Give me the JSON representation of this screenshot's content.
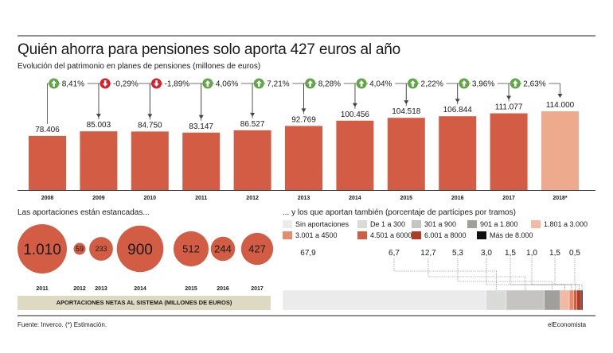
{
  "title": "Quién ahorra para pensiones solo aporta 427 euros al año",
  "subtitle": "Evolución del patrimonio en planes de pensiones (millones de euros)",
  "bubble_heading": "Las aportaciones están estancadas...",
  "bubble_banner": "APORTACIONES NETAS AL SISTEMA (MILLONES DE EUROS)",
  "share_heading": "... y los que aportan también (porcentaje de partícipes por tramos)",
  "source": "Fuente: Inverco. (*) Estimación.",
  "brand": "elEconomista",
  "colors": {
    "bar": "#d35d44",
    "bar_estimate": "#eeaa8c",
    "up": "#5fa646",
    "down": "#d8202a",
    "text": "#1a1a1a",
    "banner": "#ddd9c2"
  },
  "chart_data": [
    {
      "type": "bar",
      "categories": [
        "2008",
        "2009",
        "2010",
        "2011",
        "2012",
        "2013",
        "2014",
        "2015",
        "2016",
        "2017",
        "2018*"
      ],
      "values": [
        78406,
        85003,
        84750,
        83147,
        86527,
        92769,
        100456,
        104518,
        106844,
        111077,
        114000
      ],
      "value_labels": [
        "78.406",
        "85.003",
        "84.750",
        "83.147",
        "86.527",
        "92.769",
        "100.456",
        "104.518",
        "106.844",
        "111.077",
        "114.000"
      ],
      "changes": [
        {
          "label": "8,41%",
          "direction": "up"
        },
        {
          "label": "-0,29%",
          "direction": "down"
        },
        {
          "label": "-1,89%",
          "direction": "down"
        },
        {
          "label": "4,06%",
          "direction": "up"
        },
        {
          "label": "7,21%",
          "direction": "up"
        },
        {
          "label": "8,28%",
          "direction": "up"
        },
        {
          "label": "4,04%",
          "direction": "up"
        },
        {
          "label": "2,22%",
          "direction": "up"
        },
        {
          "label": "3,96%",
          "direction": "up"
        },
        {
          "label": "2,63%",
          "direction": "up"
        }
      ],
      "estimated_categories": [
        "2018*"
      ],
      "ylim": [
        0,
        114000
      ],
      "grid": false
    },
    {
      "type": "bubble",
      "categories": [
        "2011",
        "2012",
        "2013",
        "2014",
        "2015",
        "2016",
        "2017"
      ],
      "values": [
        1010,
        59,
        233,
        900,
        512,
        244,
        427
      ],
      "value_labels": [
        "1.010",
        "59",
        "233",
        "900",
        "512",
        "244",
        "427"
      ]
    },
    {
      "type": "stacked_bar",
      "orientation": "horizontal",
      "legend_placement": "top",
      "series": [
        {
          "name": "Sin aportaciones",
          "value": 67.9,
          "label": "67,9",
          "color": "#ebebeb"
        },
        {
          "name": "De 1 a 300",
          "value": 6.7,
          "label": "6,7",
          "color": "#dadad9"
        },
        {
          "name": "301 a 900",
          "value": 12.7,
          "label": "12,7",
          "color": "#c5c4c2"
        },
        {
          "name": "901 a 1.800",
          "value": 5.3,
          "label": "5,3",
          "color": "#a09f9c"
        },
        {
          "name": "1.801 a 3.000",
          "value": 3.0,
          "label": "3,0",
          "color": "#f3b9a3"
        },
        {
          "name": "3.001 a 4500",
          "value": 1.5,
          "label": "1,5",
          "color": "#e58c6d"
        },
        {
          "name": "4.501 a 6000",
          "value": 1.0,
          "label": "1,0",
          "color": "#d35d44"
        },
        {
          "name": "6.001 a 8000",
          "value": 1.5,
          "label": "1,5",
          "color": "#b13b24"
        },
        {
          "name": "Más de 8.000",
          "value": 0.5,
          "label": "0,5",
          "color": "#111111"
        }
      ]
    }
  ]
}
